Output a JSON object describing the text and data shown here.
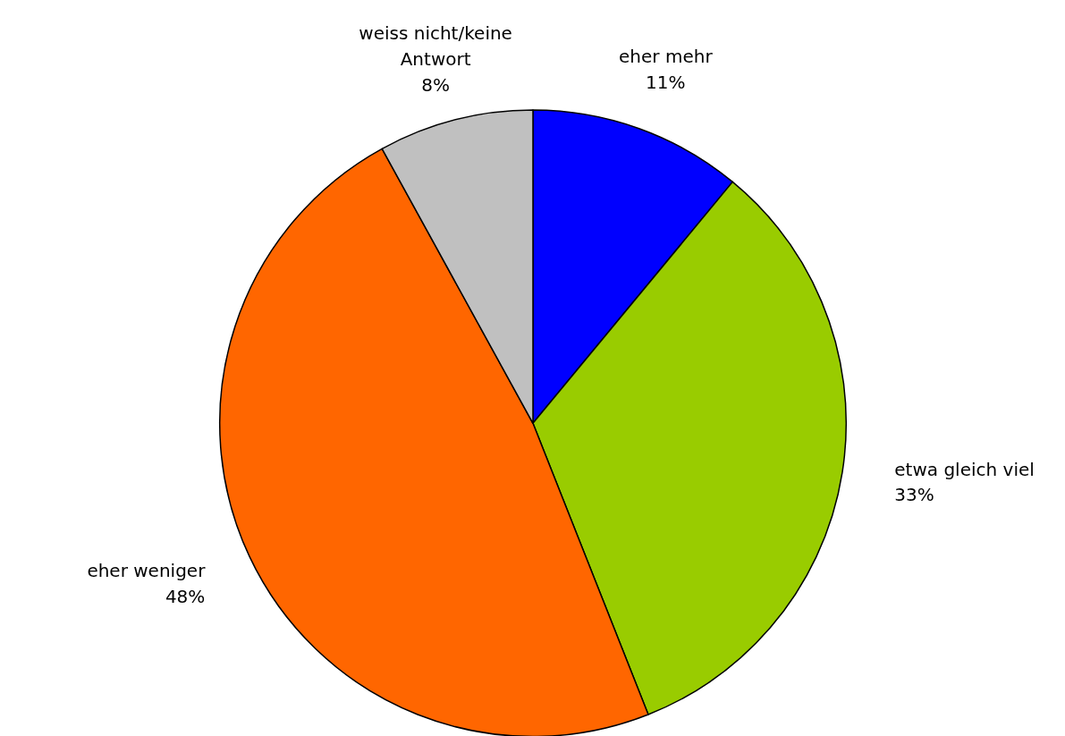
{
  "chart_data": {
    "type": "pie",
    "categories": [
      "eher mehr",
      "etwa gleich viel",
      "eher weniger",
      "weiss nicht/keine Antwort"
    ],
    "values": [
      11,
      33,
      48,
      8
    ],
    "value_labels": [
      "11%",
      "33%",
      "48%",
      "8%"
    ],
    "colors": [
      "#0000ff",
      "#99cc00",
      "#ff6600",
      "#c0c0c0"
    ]
  }
}
